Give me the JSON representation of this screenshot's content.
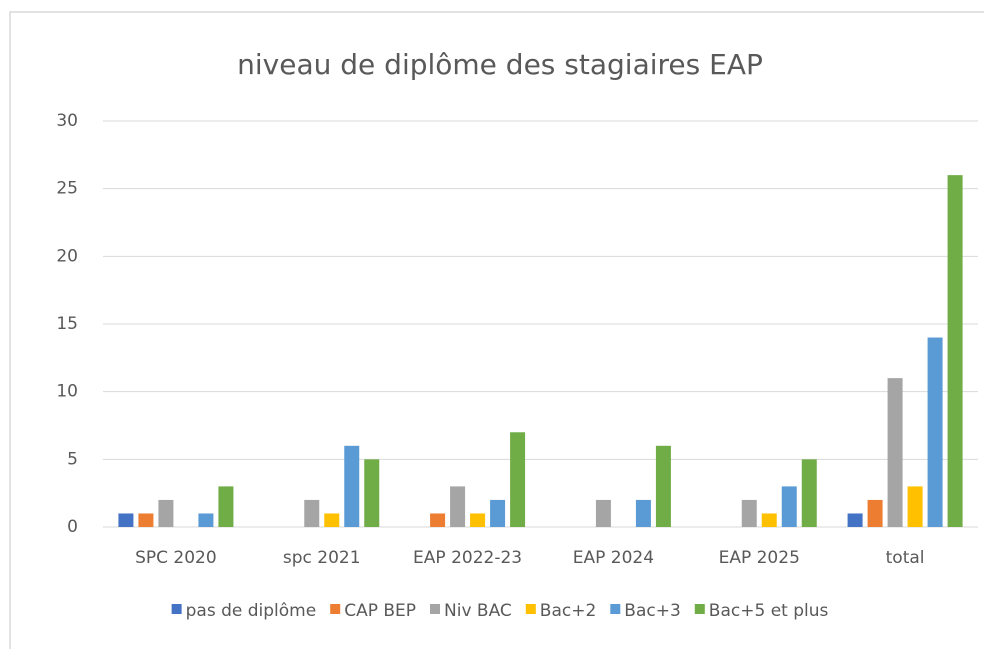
{
  "chart_data": {
    "type": "bar",
    "title": "niveau de diplôme des stagiaires EAP",
    "categories": [
      "SPC 2020",
      "spc 2021",
      "EAP 2022-23",
      "EAP 2024",
      "EAP 2025",
      "total"
    ],
    "series": [
      {
        "name": "pas de diplôme",
        "color": "#4472c4",
        "values": [
          1,
          0,
          0,
          0,
          0,
          1
        ]
      },
      {
        "name": "CAP BEP",
        "color": "#ed7d31",
        "values": [
          1,
          0,
          1,
          0,
          0,
          2
        ]
      },
      {
        "name": "Niv BAC",
        "color": "#a5a5a5",
        "values": [
          2,
          2,
          3,
          2,
          2,
          11
        ]
      },
      {
        "name": "Bac+2",
        "color": "#ffc000",
        "values": [
          0,
          1,
          1,
          0,
          1,
          3
        ]
      },
      {
        "name": "Bac+3",
        "color": "#5b9bd5",
        "values": [
          1,
          6,
          2,
          2,
          3,
          14
        ]
      },
      {
        "name": "Bac+5 et plus",
        "color": "#70ad47",
        "values": [
          3,
          5,
          7,
          6,
          5,
          26
        ]
      }
    ],
    "ylim": [
      0,
      30
    ],
    "yticks": [
      0,
      5,
      10,
      15,
      20,
      25,
      30
    ],
    "grid": true,
    "legend": "bottom"
  }
}
